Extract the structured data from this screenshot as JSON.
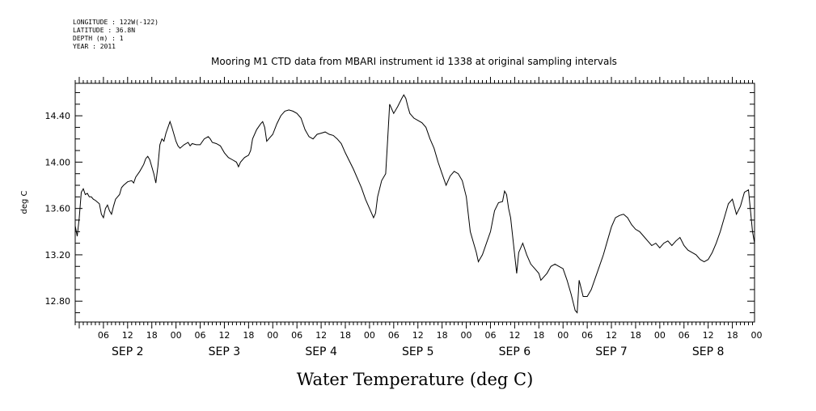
{
  "header": {
    "lines": [
      "LONGITUDE : 122W(-122)",
      "LATITUDE : 36.8N",
      "DEPTH (m) : 1",
      "YEAR : 2011"
    ]
  },
  "chart_data": {
    "type": "line",
    "title": "Mooring M1 CTD data from MBARI instrument id 1338 at original sampling intervals",
    "xlabel": "Water Temperature (deg C)",
    "ylabel": "deg C",
    "xlim": [
      "2011-09-01T23:00",
      "2011-09-08T23:30"
    ],
    "ylim": [
      12.62,
      14.68
    ],
    "yticks": [
      12.8,
      13.2,
      13.6,
      14.0,
      14.4
    ],
    "ytick_labels": [
      "12.80",
      "13.20",
      "13.60",
      "14.00",
      "14.40"
    ],
    "hour_ticks": [
      6,
      12,
      18,
      0
    ],
    "hour_tick_labels": [
      "06",
      "12",
      "18",
      "00",
      "06",
      "12",
      "18",
      "00",
      "06",
      "12",
      "18",
      "00",
      "06",
      "12",
      "18",
      "00",
      "06",
      "12",
      "18",
      "00",
      "06",
      "12",
      "18",
      "00",
      "06",
      "12",
      "18",
      "00"
    ],
    "day_labels": [
      "SEP 2",
      "SEP 3",
      "SEP 4",
      "SEP 5",
      "SEP 6",
      "SEP 7",
      "SEP 8"
    ],
    "grid": false,
    "legend": "none",
    "color": "#000000",
    "series": [
      {
        "values": [
          [
            "2011-09-01T23:00",
            13.45
          ],
          [
            "2011-09-01T23:30",
            13.36
          ],
          [
            "2011-09-02T00:00",
            13.52
          ],
          [
            "2011-09-02T00:30",
            13.74
          ],
          [
            "2011-09-02T01:00",
            13.77
          ],
          [
            "2011-09-02T01:30",
            13.72
          ],
          [
            "2011-09-02T02:00",
            13.73
          ],
          [
            "2011-09-02T02:30",
            13.7
          ],
          [
            "2011-09-02T03:00",
            13.7
          ],
          [
            "2011-09-02T03:30",
            13.68
          ],
          [
            "2011-09-02T04:00",
            13.67
          ],
          [
            "2011-09-02T05:00",
            13.64
          ],
          [
            "2011-09-02T05:30",
            13.55
          ],
          [
            "2011-09-02T06:00",
            13.52
          ],
          [
            "2011-09-02T06:30",
            13.6
          ],
          [
            "2011-09-02T07:00",
            13.63
          ],
          [
            "2011-09-02T07:30",
            13.58
          ],
          [
            "2011-09-02T08:00",
            13.55
          ],
          [
            "2011-09-02T08:30",
            13.62
          ],
          [
            "2011-09-02T09:00",
            13.68
          ],
          [
            "2011-09-02T10:00",
            13.72
          ],
          [
            "2011-09-02T10:30",
            13.78
          ],
          [
            "2011-09-02T11:00",
            13.8
          ],
          [
            "2011-09-02T12:00",
            13.83
          ],
          [
            "2011-09-02T13:00",
            13.84
          ],
          [
            "2011-09-02T13:30",
            13.82
          ],
          [
            "2011-09-02T14:00",
            13.87
          ],
          [
            "2011-09-02T15:00",
            13.92
          ],
          [
            "2011-09-02T16:00",
            13.98
          ],
          [
            "2011-09-02T16:30",
            14.03
          ],
          [
            "2011-09-02T17:00",
            14.05
          ],
          [
            "2011-09-02T17:30",
            14.02
          ],
          [
            "2011-09-02T18:00",
            13.96
          ],
          [
            "2011-09-02T18:30",
            13.9
          ],
          [
            "2011-09-02T19:00",
            13.82
          ],
          [
            "2011-09-02T19:30",
            13.96
          ],
          [
            "2011-09-02T20:00",
            14.15
          ],
          [
            "2011-09-02T20:30",
            14.2
          ],
          [
            "2011-09-02T21:00",
            14.18
          ],
          [
            "2011-09-02T21:30",
            14.25
          ],
          [
            "2011-09-02T22:00",
            14.3
          ],
          [
            "2011-09-02T22:30",
            14.35
          ],
          [
            "2011-09-02T23:00",
            14.3
          ],
          [
            "2011-09-02T23:30",
            14.24
          ],
          [
            "2011-09-03T00:00",
            14.18
          ],
          [
            "2011-09-03T00:30",
            14.14
          ],
          [
            "2011-09-03T01:00",
            14.12
          ],
          [
            "2011-09-03T02:00",
            14.15
          ],
          [
            "2011-09-03T03:00",
            14.17
          ],
          [
            "2011-09-03T03:30",
            14.14
          ],
          [
            "2011-09-03T04:00",
            14.16
          ],
          [
            "2011-09-03T05:00",
            14.15
          ],
          [
            "2011-09-03T06:00",
            14.15
          ],
          [
            "2011-09-03T07:00",
            14.2
          ],
          [
            "2011-09-03T08:00",
            14.22
          ],
          [
            "2011-09-03T08:30",
            14.2
          ],
          [
            "2011-09-03T09:00",
            14.17
          ],
          [
            "2011-09-03T10:00",
            14.16
          ],
          [
            "2011-09-03T11:00",
            14.14
          ],
          [
            "2011-09-03T12:00",
            14.08
          ],
          [
            "2011-09-03T13:00",
            14.04
          ],
          [
            "2011-09-03T14:00",
            14.02
          ],
          [
            "2011-09-03T15:00",
            14.0
          ],
          [
            "2011-09-03T15:30",
            13.96
          ],
          [
            "2011-09-03T16:00",
            14.0
          ],
          [
            "2011-09-03T17:00",
            14.04
          ],
          [
            "2011-09-03T18:00",
            14.06
          ],
          [
            "2011-09-03T18:30",
            14.1
          ],
          [
            "2011-09-03T19:00",
            14.2
          ],
          [
            "2011-09-03T20:00",
            14.28
          ],
          [
            "2011-09-03T21:00",
            14.33
          ],
          [
            "2011-09-03T21:30",
            14.35
          ],
          [
            "2011-09-03T22:00",
            14.3
          ],
          [
            "2011-09-03T22:30",
            14.18
          ],
          [
            "2011-09-03T23:00",
            14.2
          ],
          [
            "2011-09-04T00:00",
            14.24
          ],
          [
            "2011-09-04T01:00",
            14.33
          ],
          [
            "2011-09-04T02:00",
            14.4
          ],
          [
            "2011-09-04T03:00",
            14.44
          ],
          [
            "2011-09-04T04:00",
            14.45
          ],
          [
            "2011-09-04T05:00",
            14.44
          ],
          [
            "2011-09-04T06:00",
            14.42
          ],
          [
            "2011-09-04T07:00",
            14.38
          ],
          [
            "2011-09-04T08:00",
            14.28
          ],
          [
            "2011-09-04T09:00",
            14.22
          ],
          [
            "2011-09-04T10:00",
            14.2
          ],
          [
            "2011-09-04T11:00",
            14.24
          ],
          [
            "2011-09-04T12:00",
            14.25
          ],
          [
            "2011-09-04T13:00",
            14.26
          ],
          [
            "2011-09-04T14:00",
            14.24
          ],
          [
            "2011-09-04T15:00",
            14.23
          ],
          [
            "2011-09-04T16:00",
            14.2
          ],
          [
            "2011-09-04T17:00",
            14.16
          ],
          [
            "2011-09-04T18:00",
            14.08
          ],
          [
            "2011-09-04T20:00",
            13.94
          ],
          [
            "2011-09-04T22:00",
            13.78
          ],
          [
            "2011-09-04T23:00",
            13.68
          ],
          [
            "2011-09-05T00:00",
            13.6
          ],
          [
            "2011-09-05T01:00",
            13.52
          ],
          [
            "2011-09-05T01:30",
            13.56
          ],
          [
            "2011-09-05T02:00",
            13.7
          ],
          [
            "2011-09-05T03:00",
            13.84
          ],
          [
            "2011-09-05T04:00",
            13.9
          ],
          [
            "2011-09-05T04:30",
            14.2
          ],
          [
            "2011-09-05T05:00",
            14.5
          ],
          [
            "2011-09-05T06:00",
            14.42
          ],
          [
            "2011-09-05T07:00",
            14.48
          ],
          [
            "2011-09-05T08:00",
            14.55
          ],
          [
            "2011-09-05T08:30",
            14.58
          ],
          [
            "2011-09-05T09:00",
            14.55
          ],
          [
            "2011-09-05T09:30",
            14.48
          ],
          [
            "2011-09-05T10:00",
            14.42
          ],
          [
            "2011-09-05T11:00",
            14.38
          ],
          [
            "2011-09-05T12:00",
            14.36
          ],
          [
            "2011-09-05T13:00",
            14.34
          ],
          [
            "2011-09-05T14:00",
            14.3
          ],
          [
            "2011-09-05T15:00",
            14.2
          ],
          [
            "2011-09-05T16:00",
            14.12
          ],
          [
            "2011-09-05T17:00",
            14.0
          ],
          [
            "2011-09-05T18:00",
            13.9
          ],
          [
            "2011-09-05T19:00",
            13.8
          ],
          [
            "2011-09-05T20:00",
            13.88
          ],
          [
            "2011-09-05T21:00",
            13.92
          ],
          [
            "2011-09-05T22:00",
            13.9
          ],
          [
            "2011-09-05T23:00",
            13.84
          ],
          [
            "2011-09-06T00:00",
            13.7
          ],
          [
            "2011-09-06T01:00",
            13.4
          ],
          [
            "2011-09-06T02:00",
            13.28
          ],
          [
            "2011-09-06T02:30",
            13.22
          ],
          [
            "2011-09-06T03:00",
            13.14
          ],
          [
            "2011-09-06T04:00",
            13.2
          ],
          [
            "2011-09-06T05:00",
            13.3
          ],
          [
            "2011-09-06T06:00",
            13.4
          ],
          [
            "2011-09-06T07:00",
            13.58
          ],
          [
            "2011-09-06T08:00",
            13.65
          ],
          [
            "2011-09-06T09:00",
            13.66
          ],
          [
            "2011-09-06T09:30",
            13.75
          ],
          [
            "2011-09-06T10:00",
            13.72
          ],
          [
            "2011-09-06T10:30",
            13.6
          ],
          [
            "2011-09-06T11:00",
            13.52
          ],
          [
            "2011-09-06T12:00",
            13.2
          ],
          [
            "2011-09-06T12:30",
            13.04
          ],
          [
            "2011-09-06T13:00",
            13.22
          ],
          [
            "2011-09-06T14:00",
            13.3
          ],
          [
            "2011-09-06T15:00",
            13.2
          ],
          [
            "2011-09-06T16:00",
            13.12
          ],
          [
            "2011-09-06T17:00",
            13.08
          ],
          [
            "2011-09-06T18:00",
            13.04
          ],
          [
            "2011-09-06T18:30",
            12.98
          ],
          [
            "2011-09-06T19:00",
            13.0
          ],
          [
            "2011-09-06T20:00",
            13.04
          ],
          [
            "2011-09-06T21:00",
            13.1
          ],
          [
            "2011-09-06T22:00",
            13.12
          ],
          [
            "2011-09-06T23:00",
            13.1
          ],
          [
            "2011-09-07T00:00",
            13.08
          ],
          [
            "2011-09-07T01:00",
            12.98
          ],
          [
            "2011-09-07T02:00",
            12.86
          ],
          [
            "2011-09-07T03:00",
            12.72
          ],
          [
            "2011-09-07T03:30",
            12.7
          ],
          [
            "2011-09-07T04:00",
            12.98
          ],
          [
            "2011-09-07T05:00",
            12.84
          ],
          [
            "2011-09-07T06:00",
            12.84
          ],
          [
            "2011-09-07T07:00",
            12.9
          ],
          [
            "2011-09-07T08:00",
            13.0
          ],
          [
            "2011-09-07T09:00",
            13.1
          ],
          [
            "2011-09-07T10:00",
            13.2
          ],
          [
            "2011-09-07T11:00",
            13.32
          ],
          [
            "2011-09-07T12:00",
            13.44
          ],
          [
            "2011-09-07T13:00",
            13.52
          ],
          [
            "2011-09-07T14:00",
            13.54
          ],
          [
            "2011-09-07T15:00",
            13.55
          ],
          [
            "2011-09-07T16:00",
            13.52
          ],
          [
            "2011-09-07T17:00",
            13.46
          ],
          [
            "2011-09-07T18:00",
            13.42
          ],
          [
            "2011-09-07T19:00",
            13.4
          ],
          [
            "2011-09-07T20:00",
            13.36
          ],
          [
            "2011-09-07T21:00",
            13.32
          ],
          [
            "2011-09-07T22:00",
            13.28
          ],
          [
            "2011-09-07T23:00",
            13.3
          ],
          [
            "2011-09-08T00:00",
            13.26
          ],
          [
            "2011-09-08T01:00",
            13.3
          ],
          [
            "2011-09-08T02:00",
            13.32
          ],
          [
            "2011-09-08T03:00",
            13.28
          ],
          [
            "2011-09-08T04:00",
            13.32
          ],
          [
            "2011-09-08T05:00",
            13.35
          ],
          [
            "2011-09-08T06:00",
            13.28
          ],
          [
            "2011-09-08T07:00",
            13.24
          ],
          [
            "2011-09-08T08:00",
            13.22
          ],
          [
            "2011-09-08T09:00",
            13.2
          ],
          [
            "2011-09-08T10:00",
            13.16
          ],
          [
            "2011-09-08T11:00",
            13.14
          ],
          [
            "2011-09-08T12:00",
            13.16
          ],
          [
            "2011-09-08T13:00",
            13.22
          ],
          [
            "2011-09-08T14:00",
            13.3
          ],
          [
            "2011-09-08T15:00",
            13.4
          ],
          [
            "2011-09-08T16:00",
            13.52
          ],
          [
            "2011-09-08T17:00",
            13.64
          ],
          [
            "2011-09-08T18:00",
            13.68
          ],
          [
            "2011-09-08T19:00",
            13.55
          ],
          [
            "2011-09-08T20:00",
            13.62
          ],
          [
            "2011-09-08T21:00",
            13.74
          ],
          [
            "2011-09-08T22:00",
            13.76
          ],
          [
            "2011-09-08T23:00",
            13.4
          ],
          [
            "2011-09-08T23:30",
            13.3
          ]
        ]
      }
    ]
  }
}
